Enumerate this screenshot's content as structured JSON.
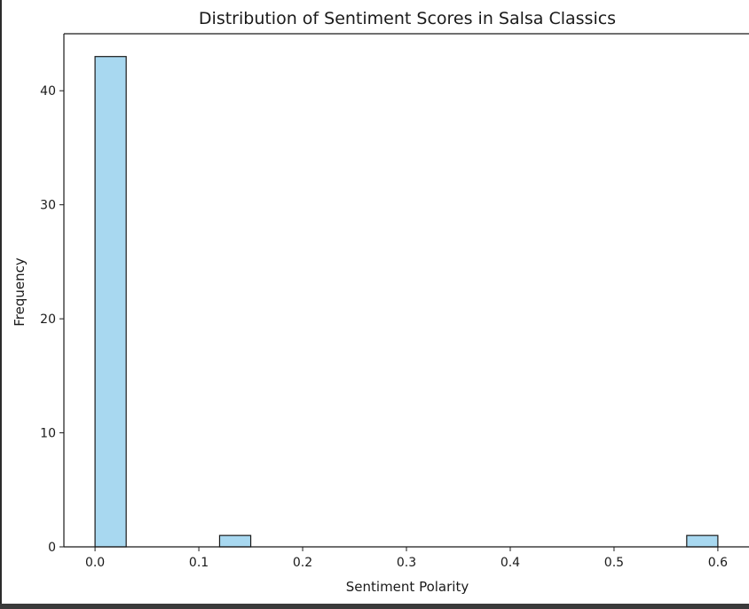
{
  "chart_data": {
    "type": "bar",
    "title": "Distribution of Sentiment Scores in Salsa Classics",
    "xlabel": "Sentiment Polarity",
    "ylabel": "Frequency",
    "xlim": [
      -0.03,
      0.63
    ],
    "ylim": [
      0,
      45
    ],
    "xticks": [
      0.0,
      0.1,
      0.2,
      0.3,
      0.4,
      0.5,
      0.6
    ],
    "xtick_labels": [
      "0.0",
      "0.1",
      "0.2",
      "0.3",
      "0.4",
      "0.5",
      "0.6"
    ],
    "yticks": [
      0,
      10,
      20,
      30,
      40
    ],
    "ytick_labels": [
      "0",
      "10",
      "20",
      "30",
      "40"
    ],
    "bins": [
      {
        "x0": 0.0,
        "x1": 0.03,
        "count": 43
      },
      {
        "x0": 0.12,
        "x1": 0.15,
        "count": 1
      },
      {
        "x0": 0.57,
        "x1": 0.6,
        "count": 1
      }
    ],
    "bar_color": "#a8d8f0",
    "edge_color": "#1a1a1a",
    "grid": false,
    "legend": "none"
  }
}
